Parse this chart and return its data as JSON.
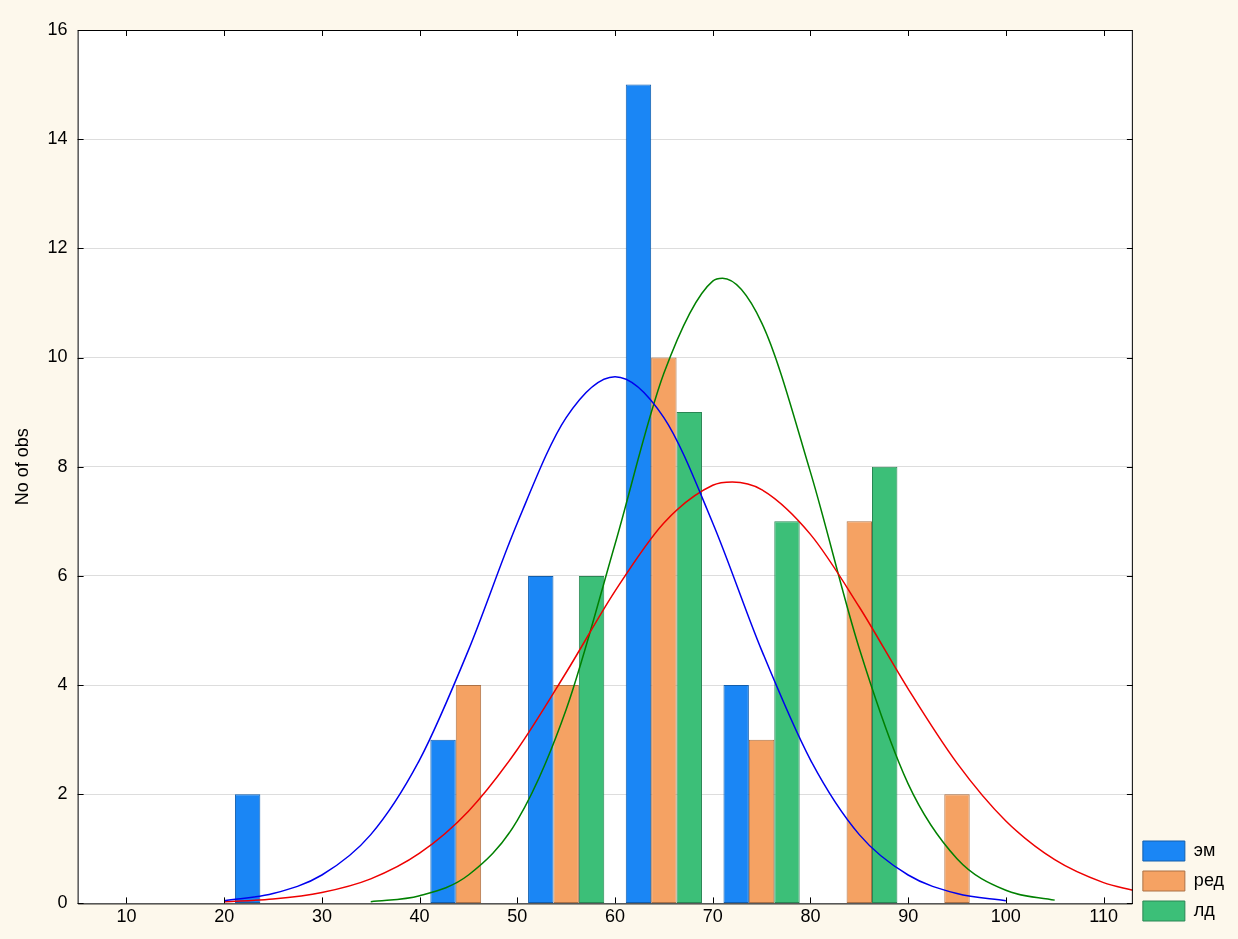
{
  "chart_data": {
    "type": "histogram",
    "ylabel": "No of obs",
    "bins": [
      20,
      30,
      40,
      50,
      60,
      70,
      80,
      90,
      100
    ],
    "series": [
      {
        "name": "эм",
        "color": "#1a86f5",
        "values": [
          2,
          0,
          3,
          6,
          15,
          4,
          0,
          0
        ]
      },
      {
        "name": "ред",
        "color": "#f5a263",
        "values": [
          0,
          0,
          4,
          4,
          10,
          3,
          7,
          2
        ]
      },
      {
        "name": "лд",
        "color": "#3cbf78",
        "values": [
          0,
          0,
          0,
          6,
          9,
          7,
          8,
          0
        ]
      },
      {
        "type": "line",
        "color": "#0000ee",
        "x": [
          20,
          25,
          30,
          35,
          40,
          45,
          50,
          55,
          60,
          65,
          70,
          75,
          80,
          85,
          90,
          95,
          100
        ],
        "values": [
          0.05,
          0.18,
          0.52,
          1.26,
          2.63,
          4.64,
          6.97,
          8.9,
          9.65,
          8.9,
          6.97,
          4.64,
          2.63,
          1.26,
          0.52,
          0.18,
          0.05
        ]
      },
      {
        "type": "line",
        "color": "#ee0000",
        "x": [
          20,
          25,
          30,
          35,
          40,
          45,
          50,
          55,
          60,
          65,
          70,
          72,
          75,
          80,
          85,
          90,
          95,
          100,
          105,
          110,
          113
        ],
        "values": [
          0.03,
          0.08,
          0.2,
          0.45,
          0.92,
          1.69,
          2.82,
          4.23,
          5.72,
          6.97,
          7.66,
          7.72,
          7.58,
          6.76,
          5.43,
          3.93,
          2.57,
          1.51,
          0.8,
          0.38,
          0.24
        ]
      },
      {
        "type": "line",
        "color": "#008000",
        "x": [
          35,
          40,
          45,
          50,
          55,
          60,
          65,
          70,
          71,
          75,
          80,
          85,
          90,
          95,
          100,
          105
        ],
        "values": [
          0.03,
          0.14,
          0.52,
          1.52,
          3.55,
          6.58,
          9.71,
          11.4,
          11.45,
          10.64,
          7.9,
          4.67,
          2.19,
          0.82,
          0.24,
          0.06
        ]
      }
    ],
    "xlim": [
      5,
      113
    ],
    "xticks": [
      10,
      20,
      30,
      40,
      50,
      60,
      70,
      80,
      90,
      100,
      110
    ],
    "ylim": [
      0,
      16
    ],
    "yticks": [
      0,
      2,
      4,
      6,
      8,
      10,
      12,
      14,
      16
    ],
    "grid": "y",
    "legend": "bottom right"
  }
}
